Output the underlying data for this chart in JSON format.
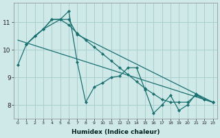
{
  "xlabel": "Humidex (Indice chaleur)",
  "xlim": [
    -0.5,
    23.5
  ],
  "ylim": [
    7.5,
    11.7
  ],
  "yticks": [
    8,
    9,
    10,
    11
  ],
  "xticks": [
    0,
    1,
    2,
    3,
    4,
    5,
    6,
    7,
    8,
    9,
    10,
    11,
    12,
    13,
    14,
    15,
    16,
    17,
    18,
    19,
    20,
    21,
    22,
    23
  ],
  "bg_color": "#cfe8e8",
  "grid_color": "#aacece",
  "line_color": "#1a7070",
  "lines": [
    {
      "x": [
        0,
        1,
        2,
        3,
        4,
        5,
        6,
        7,
        8,
        9,
        10,
        11,
        12,
        13,
        14,
        15,
        16,
        17,
        18,
        19,
        20,
        21,
        22,
        23
      ],
      "y": [
        9.45,
        10.2,
        10.5,
        10.75,
        11.1,
        11.1,
        11.4,
        9.55,
        8.1,
        8.65,
        8.8,
        9.0,
        9.05,
        9.35,
        9.35,
        8.55,
        7.7,
        8.0,
        8.35,
        7.8,
        8.0,
        8.4,
        8.2,
        8.1
      ]
    },
    {
      "x": [
        1,
        2,
        3,
        4,
        5,
        6,
        7,
        8,
        9,
        10,
        11,
        12,
        13,
        14,
        15,
        16,
        17,
        18,
        19,
        20,
        21,
        22,
        23
      ],
      "y": [
        10.2,
        10.5,
        10.75,
        11.1,
        11.1,
        10.9,
        10.6,
        10.35,
        10.1,
        9.85,
        9.6,
        9.35,
        9.1,
        8.85,
        8.6,
        8.4,
        8.2,
        8.1,
        8.1,
        8.1,
        8.35,
        8.2,
        8.1
      ]
    },
    {
      "x": [
        1,
        3,
        5,
        6,
        7,
        23
      ],
      "y": [
        10.2,
        10.75,
        11.1,
        11.1,
        10.55,
        8.1
      ]
    },
    {
      "x": [
        0,
        23
      ],
      "y": [
        10.35,
        8.1
      ]
    }
  ]
}
